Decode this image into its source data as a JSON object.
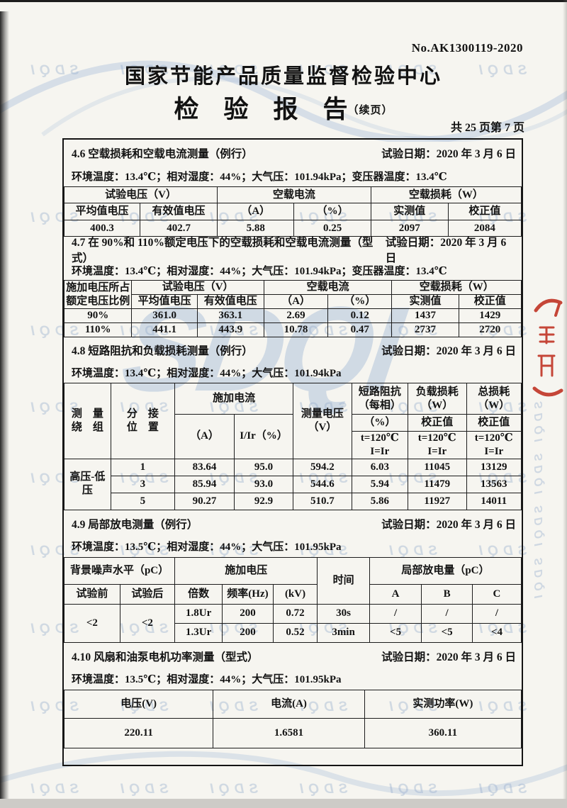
{
  "header": {
    "report_no": "No.AK1300119-2020",
    "org_title": "国家节能产品质量监督检验中心",
    "report_title": "检　验　报　告",
    "report_suffix": "（续页）",
    "page_info": "共 25 页第 7 页"
  },
  "watermark": {
    "text": "SDQI",
    "rows": [
      84,
      292,
      452,
      560,
      660,
      762,
      872,
      982,
      1098
    ],
    "color": "#94aaca"
  },
  "stamp": {
    "color": "#bf2f1f"
  },
  "s46": {
    "title": "4.6 空载损耗和空载电流测量（例行）",
    "date": "试验日期：2020 年 3 月 6 日",
    "env": "环境温度：13.4℃；相对湿度：44%；大气压：101.94kPa；变压器温度：13.4℃",
    "h1": [
      "试验电压（V）",
      "空载电流",
      "空载损耗（W）"
    ],
    "h2": [
      "平均值电压",
      "有效值电压",
      "（A）",
      "（%）",
      "实测值",
      "校正值"
    ],
    "row": [
      "400.3",
      "402.7",
      "5.88",
      "0.25",
      "2097",
      "2084"
    ]
  },
  "s47": {
    "title": "4.7 在 90%和 110%额定电压下的空载损耗和空载电流测量（型式）",
    "date": "试验日期：2020 年 3 月 6 日",
    "env": "环境温度：13.4℃；相对湿度：44%；大气压：101.94kPa；变压器温度：13.4℃",
    "col1": "施加电压所占\n额定电压比例",
    "h1": [
      "试验电压（V）",
      "空载电流",
      "空载损耗（W）"
    ],
    "h2": [
      "平均值电压",
      "有效值电压",
      "（A）",
      "（%）",
      "实测值",
      "校正值"
    ],
    "rows": [
      [
        "90%",
        "361.0",
        "363.1",
        "2.69",
        "0.12",
        "1437",
        "1429"
      ],
      [
        "110%",
        "441.1",
        "443.9",
        "10.78",
        "0.47",
        "2737",
        "2720"
      ]
    ]
  },
  "s48": {
    "title": "4.8 短路阻抗和负载损耗测量（例行）",
    "date": "试验日期：2020 年 3 月 6 日",
    "env": "环境温度：13.4℃；相对湿度：44%；大气压：101.94kPa",
    "h_winding": "测　量\n绕　组",
    "h_tap": "分　接\n位　置",
    "h_current": "施加电流",
    "h_current_a": "（A）",
    "h_current_ir": "I/Ir（%）",
    "h_voltage": "测量电压\n（V）",
    "h_impedance": "短路阻抗\n（每相）",
    "h_impedance_unit": "（%）",
    "h_load": "负载损耗\n（W）",
    "h_load_corr": "校正值",
    "h_total": "总损耗\n（W）",
    "h_total_corr": "校正值",
    "h_cond": "t=120℃\nI=Ir",
    "winding": "高压-低压",
    "rows": [
      [
        "1",
        "83.64",
        "95.0",
        "594.2",
        "6.03",
        "11045",
        "13129"
      ],
      [
        "3",
        "85.94",
        "93.0",
        "544.6",
        "5.94",
        "11479",
        "13563"
      ],
      [
        "5",
        "90.27",
        "92.9",
        "510.7",
        "5.86",
        "11927",
        "14011"
      ]
    ]
  },
  "s49": {
    "title": "4.9 局部放电测量（例行）",
    "date": "试验日期：2020 年 3 月 6 日",
    "env": "环境温度：13.5℃；相对湿度：44%；大气压：101.95kPa",
    "h_bg": "背景噪声水平（pC）",
    "h_before": "试验前",
    "h_after": "试验后",
    "h_applied": "施加电压",
    "h_mult": "倍数",
    "h_freq": "频率(Hz)",
    "h_kv": "(kV)",
    "h_time": "时间",
    "h_pd": "局部放电量（pC）",
    "h_a": "A",
    "h_b": "B",
    "h_c": "C",
    "before": "<2",
    "after": "<2",
    "rows": [
      [
        "1.8Ur",
        "200",
        "0.72",
        "30s",
        "/",
        "/",
        "/"
      ],
      [
        "1.3Ur",
        "200",
        "0.52",
        "3min",
        "<5",
        "<5",
        "<4"
      ]
    ]
  },
  "s410": {
    "title": "4.10 风扇和油泵电机功率测量（型式）",
    "date": "试验日期：2020 年 3 月 6 日",
    "env": "环境温度：13.5℃；相对湿度：44%；大气压：101.95kPa",
    "h": [
      "电压(V)",
      "电流(A)",
      "实测功率(W)"
    ],
    "row": [
      "220.11",
      "1.6581",
      "360.11"
    ]
  }
}
